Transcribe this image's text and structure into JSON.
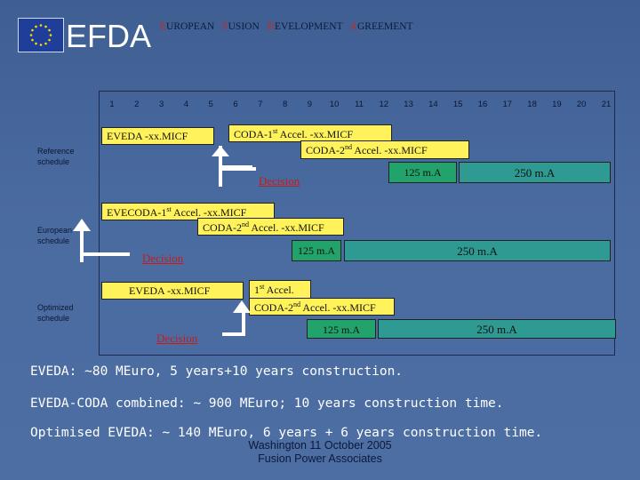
{
  "header": {
    "logo_text": "EFDA",
    "agreement_words": [
      {
        "cap": "E",
        "rest": "UROPEAN"
      },
      {
        "cap": "F",
        "rest": "USION"
      },
      {
        "cap": "D",
        "rest": "EVELOPMENT"
      },
      {
        "cap": "A",
        "rest": "GREEMENT"
      }
    ]
  },
  "timeline": {
    "ticks": [
      "1",
      "2",
      "3",
      "4",
      "5",
      "6",
      "7",
      "8",
      "9",
      "10",
      "11",
      "12",
      "13",
      "14",
      "15",
      "16",
      "17",
      "18",
      "19",
      "20",
      "21"
    ]
  },
  "rows": {
    "reference": {
      "label_line1": "Reference",
      "label_line2": "schedule",
      "eveda": "EVEDA -xx.MICF",
      "coda1": "CODA-1st Accel. -xx.MICF",
      "coda2": "CODA-2nd Accel. -xx.MICF",
      "decision": "Decision",
      "ma125": "125 m.A",
      "ma250": "250 m.A"
    },
    "european": {
      "label_line1": "European",
      "label_line2": "schedule",
      "eveda": "EVECODA-1st Accel. -xx.MICF",
      "coda2": "CODA-2nd Accel. -xx.MICF",
      "decision": "Decision",
      "ma125": "125 m.A",
      "ma250": "250 m.A"
    },
    "optimized": {
      "label_line1": "Optimized",
      "label_line2": "schedule",
      "eveda": "EVEDA -xx.MICF",
      "accel1": "1st Accel.",
      "coda2": "CODA-2nd Accel. -xx.MICF",
      "decision": "Decision",
      "ma125": "125 m.A",
      "ma250": "250 m.A"
    }
  },
  "statements": [
    "EVEDA: ~80 MEuro, 5 years+10 years construction.",
    "EVEDA-CODA combined: ~ 900 MEuro; 10 years construction time.",
    "Optimised EVEDA: ~ 140 MEuro, 6 years + 6 years construction time."
  ],
  "footer": {
    "line1": "Washington 11 October 2005",
    "line2": "Fusion Power Associates"
  },
  "colors": {
    "background": "#4a6ba0",
    "yellow_box": "#fff25a",
    "green_box": "#22a36b",
    "teal_box": "#2e9a92",
    "decision_text": "#c81b1b",
    "agreement_caps": "#d0241b"
  }
}
